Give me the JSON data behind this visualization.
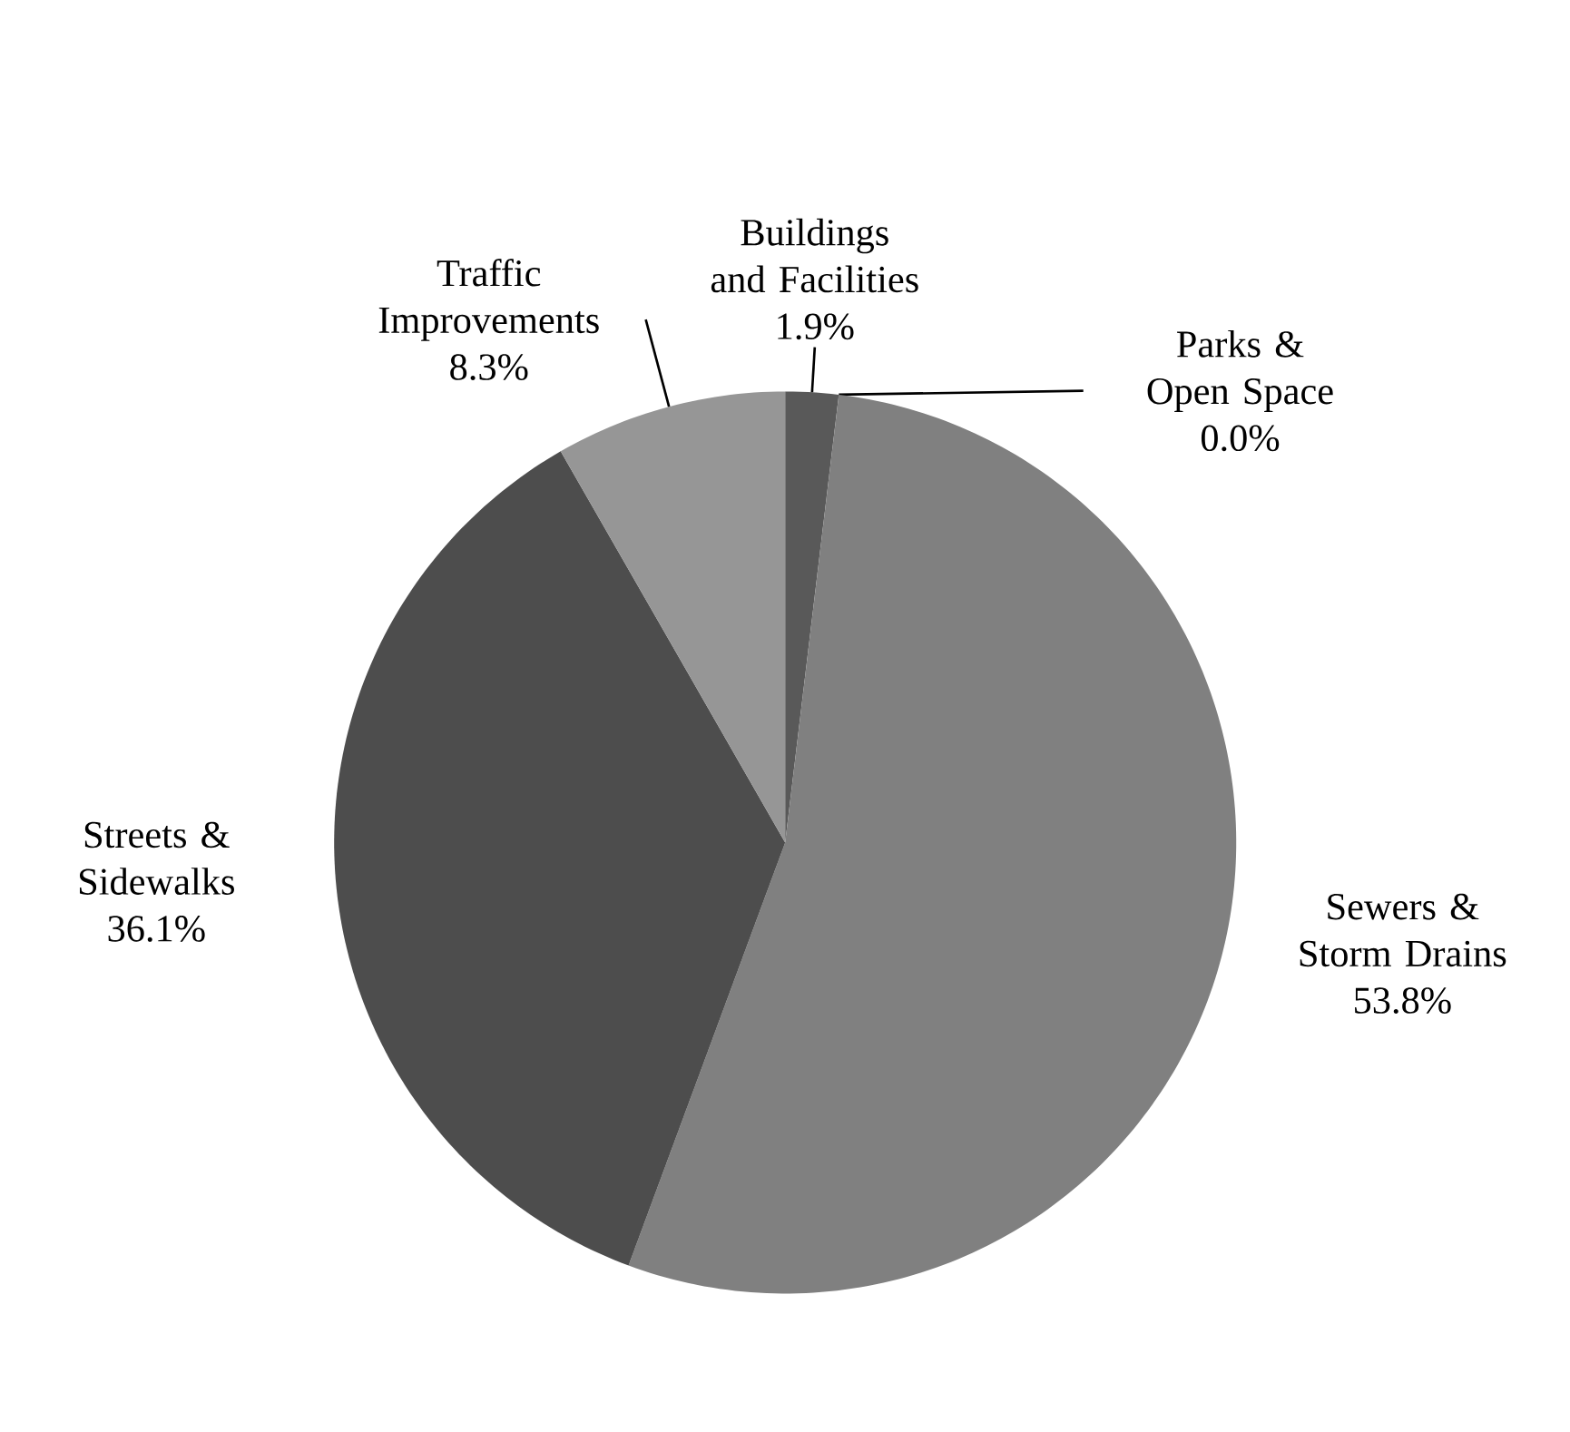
{
  "chart_data": {
    "type": "pie",
    "categories": [
      "Buildings and Facilities",
      "Parks & Open Space",
      "Sewers & Storm Drains",
      "Streets & Sidewalks",
      "Traffic Improvements"
    ],
    "values": [
      1.9,
      0.0,
      53.8,
      36.1,
      8.3
    ],
    "colors": [
      "#595959",
      "#a6a6a6",
      "#808080",
      "#4d4d4d",
      "#969696"
    ],
    "value_labels": [
      "1.9%",
      "0.0%",
      "53.8%",
      "36.1%",
      "8.3%"
    ]
  }
}
